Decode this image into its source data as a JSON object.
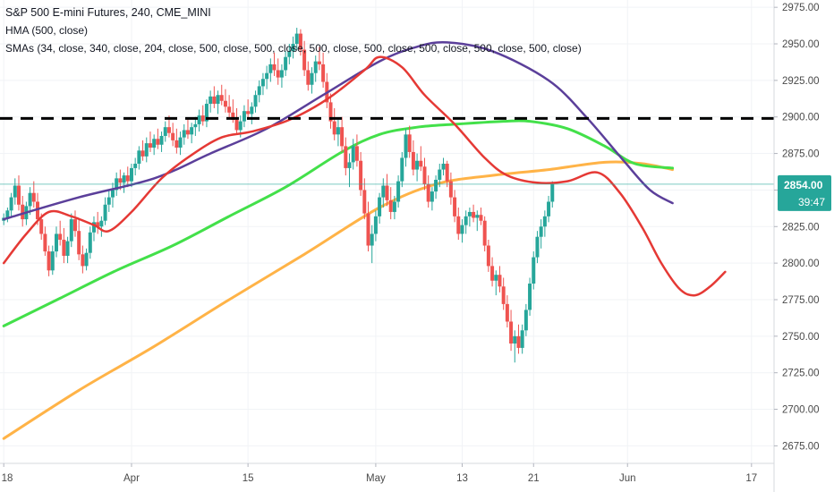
{
  "legend": {
    "title": "S&P 500 E-mini Futures, 240, CME_MINI",
    "hma": "HMA (500, close)",
    "smas": "SMAs (34, close, 340, close, 204, close, 500, close, 500, close, 500, close, 500, close, 500, close, 500, close, 500, close)"
  },
  "price_label": {
    "value": "2854.00",
    "countdown": "39:47",
    "color": "#26a69a"
  },
  "colors": {
    "up": "#26a69a",
    "down": "#ef5350",
    "hma": "#5b3f9a",
    "sma34": "#e53935",
    "sma204": "#43e04a",
    "sma340": "#ffb347",
    "dashed": "#000000",
    "price_line": "#26a69a"
  },
  "chart_data": {
    "type": "candlestick",
    "y_axis": {
      "ticks": [
        2675,
        2700,
        2725,
        2750,
        2775,
        2800,
        2825,
        2850,
        2875,
        2900,
        2925,
        2950,
        2975
      ],
      "tick_labels": [
        "2675.00",
        "2700.00",
        "2725.00",
        "2750.00",
        "2775.00",
        "2800.00",
        "2825.00",
        "2850.00",
        "2875.00",
        "2900.00",
        "2925.00",
        "2950.00",
        "2975.00"
      ],
      "ylim": [
        2663,
        2980
      ]
    },
    "x_axis": {
      "tick_labels": [
        "18",
        "Apr",
        "15",
        "May",
        "13",
        "21",
        "Jun",
        "17"
      ],
      "tick_positions": [
        0,
        34,
        65,
        99,
        122,
        141,
        166,
        199
      ],
      "xlim": [
        -1,
        205
      ]
    },
    "horizontal_line": 2899,
    "last_price": 2854,
    "ohlc": [
      [
        2829,
        2834,
        2826,
        2831
      ],
      [
        2831,
        2838,
        2828,
        2836
      ],
      [
        2836,
        2848,
        2832,
        2845
      ],
      [
        2845,
        2858,
        2840,
        2853
      ],
      [
        2853,
        2860,
        2836,
        2840
      ],
      [
        2840,
        2846,
        2825,
        2830
      ],
      [
        2830,
        2842,
        2826,
        2839
      ],
      [
        2839,
        2852,
        2833,
        2848
      ],
      [
        2848,
        2856,
        2838,
        2842
      ],
      [
        2842,
        2848,
        2826,
        2830
      ],
      [
        2830,
        2834,
        2816,
        2820
      ],
      [
        2820,
        2825,
        2805,
        2808
      ],
      [
        2808,
        2812,
        2791,
        2795
      ],
      [
        2795,
        2812,
        2792,
        2808
      ],
      [
        2808,
        2825,
        2804,
        2820
      ],
      [
        2820,
        2829,
        2812,
        2816
      ],
      [
        2816,
        2824,
        2800,
        2805
      ],
      [
        2805,
        2818,
        2800,
        2815
      ],
      [
        2815,
        2834,
        2811,
        2830
      ],
      [
        2830,
        2836,
        2818,
        2822
      ],
      [
        2822,
        2830,
        2802,
        2806
      ],
      [
        2806,
        2812,
        2793,
        2798
      ],
      [
        2798,
        2810,
        2795,
        2807
      ],
      [
        2807,
        2825,
        2803,
        2821
      ],
      [
        2821,
        2832,
        2815,
        2828
      ],
      [
        2828,
        2835,
        2820,
        2825
      ],
      [
        2825,
        2832,
        2818,
        2829
      ],
      [
        2829,
        2845,
        2826,
        2840
      ],
      [
        2840,
        2850,
        2835,
        2845
      ],
      [
        2845,
        2855,
        2838,
        2850
      ],
      [
        2850,
        2862,
        2846,
        2858
      ],
      [
        2858,
        2864,
        2850,
        2855
      ],
      [
        2855,
        2862,
        2848,
        2860
      ],
      [
        2860,
        2866,
        2852,
        2856
      ],
      [
        2856,
        2868,
        2852,
        2865
      ],
      [
        2865,
        2872,
        2860,
        2868
      ],
      [
        2868,
        2880,
        2864,
        2877
      ],
      [
        2877,
        2884,
        2870,
        2873
      ],
      [
        2873,
        2886,
        2869,
        2882
      ],
      [
        2882,
        2890,
        2876,
        2879
      ],
      [
        2879,
        2888,
        2874,
        2885
      ],
      [
        2885,
        2892,
        2878,
        2881
      ],
      [
        2881,
        2890,
        2876,
        2887
      ],
      [
        2887,
        2897,
        2883,
        2893
      ],
      [
        2893,
        2901,
        2886,
        2889
      ],
      [
        2889,
        2896,
        2880,
        2884
      ],
      [
        2884,
        2892,
        2875,
        2879
      ],
      [
        2879,
        2890,
        2874,
        2886
      ],
      [
        2886,
        2895,
        2881,
        2891
      ],
      [
        2891,
        2899,
        2885,
        2888
      ],
      [
        2888,
        2896,
        2882,
        2893
      ],
      [
        2893,
        2900,
        2887,
        2895
      ],
      [
        2895,
        2905,
        2890,
        2901
      ],
      [
        2901,
        2908,
        2894,
        2897
      ],
      [
        2897,
        2912,
        2893,
        2909
      ],
      [
        2909,
        2918,
        2903,
        2914
      ],
      [
        2914,
        2921,
        2906,
        2909
      ],
      [
        2909,
        2918,
        2902,
        2915
      ],
      [
        2915,
        2922,
        2908,
        2911
      ],
      [
        2911,
        2919,
        2903,
        2907
      ],
      [
        2907,
        2915,
        2899,
        2903
      ],
      [
        2903,
        2912,
        2896,
        2898
      ],
      [
        2898,
        2906,
        2888,
        2891
      ],
      [
        2891,
        2901,
        2886,
        2897
      ],
      [
        2897,
        2908,
        2893,
        2904
      ],
      [
        2904,
        2912,
        2898,
        2902
      ],
      [
        2902,
        2910,
        2895,
        2907
      ],
      [
        2907,
        2918,
        2903,
        2915
      ],
      [
        2915,
        2925,
        2910,
        2921
      ],
      [
        2921,
        2930,
        2915,
        2926
      ],
      [
        2926,
        2935,
        2919,
        2930
      ],
      [
        2930,
        2940,
        2924,
        2936
      ],
      [
        2936,
        2944,
        2928,
        2932
      ],
      [
        2932,
        2940,
        2922,
        2927
      ],
      [
        2927,
        2936,
        2920,
        2932
      ],
      [
        2932,
        2945,
        2928,
        2941
      ],
      [
        2941,
        2950,
        2936,
        2945
      ],
      [
        2945,
        2955,
        2940,
        2950
      ],
      [
        2950,
        2961,
        2946,
        2957
      ],
      [
        2957,
        2960,
        2942,
        2946
      ],
      [
        2946,
        2952,
        2928,
        2932
      ],
      [
        2932,
        2938,
        2918,
        2922
      ],
      [
        2922,
        2934,
        2916,
        2930
      ],
      [
        2930,
        2942,
        2924,
        2938
      ],
      [
        2938,
        2948,
        2932,
        2936
      ],
      [
        2936,
        2944,
        2920,
        2924
      ],
      [
        2924,
        2930,
        2906,
        2910
      ],
      [
        2910,
        2916,
        2892,
        2897
      ],
      [
        2897,
        2906,
        2884,
        2888
      ],
      [
        2888,
        2898,
        2880,
        2893
      ],
      [
        2893,
        2900,
        2876,
        2880
      ],
      [
        2880,
        2886,
        2860,
        2865
      ],
      [
        2865,
        2875,
        2852,
        2869
      ],
      [
        2869,
        2885,
        2864,
        2880
      ],
      [
        2880,
        2888,
        2866,
        2870
      ],
      [
        2870,
        2876,
        2846,
        2850
      ],
      [
        2850,
        2858,
        2830,
        2834
      ],
      [
        2834,
        2842,
        2808,
        2812
      ],
      [
        2812,
        2826,
        2800,
        2820
      ],
      [
        2820,
        2836,
        2815,
        2832
      ],
      [
        2832,
        2848,
        2827,
        2845
      ],
      [
        2845,
        2858,
        2838,
        2853
      ],
      [
        2853,
        2861,
        2839,
        2843
      ],
      [
        2843,
        2852,
        2830,
        2835
      ],
      [
        2835,
        2846,
        2830,
        2842
      ],
      [
        2842,
        2860,
        2838,
        2856
      ],
      [
        2856,
        2876,
        2852,
        2872
      ],
      [
        2872,
        2892,
        2866,
        2888
      ],
      [
        2888,
        2894,
        2872,
        2876
      ],
      [
        2876,
        2884,
        2860,
        2864
      ],
      [
        2864,
        2875,
        2856,
        2870
      ],
      [
        2870,
        2880,
        2863,
        2866
      ],
      [
        2866,
        2872,
        2850,
        2854
      ],
      [
        2854,
        2860,
        2838,
        2842
      ],
      [
        2842,
        2852,
        2836,
        2849
      ],
      [
        2849,
        2860,
        2844,
        2857
      ],
      [
        2857,
        2868,
        2852,
        2864
      ],
      [
        2864,
        2872,
        2860,
        2868
      ],
      [
        2868,
        2870,
        2852,
        2856
      ],
      [
        2856,
        2862,
        2840,
        2845
      ],
      [
        2845,
        2850,
        2828,
        2832
      ],
      [
        2832,
        2838,
        2816,
        2820
      ],
      [
        2820,
        2830,
        2814,
        2826
      ],
      [
        2826,
        2836,
        2820,
        2832
      ],
      [
        2832,
        2838,
        2825,
        2835
      ],
      [
        2835,
        2840,
        2828,
        2831
      ],
      [
        2831,
        2836,
        2822,
        2833
      ],
      [
        2833,
        2838,
        2826,
        2829
      ],
      [
        2829,
        2832,
        2808,
        2812
      ],
      [
        2812,
        2816,
        2794,
        2798
      ],
      [
        2798,
        2804,
        2784,
        2788
      ],
      [
        2788,
        2795,
        2778,
        2792
      ],
      [
        2792,
        2798,
        2780,
        2784
      ],
      [
        2784,
        2790,
        2768,
        2772
      ],
      [
        2772,
        2778,
        2756,
        2760
      ],
      [
        2760,
        2768,
        2740,
        2745
      ],
      [
        2745,
        2754,
        2732,
        2750
      ],
      [
        2750,
        2758,
        2738,
        2742
      ],
      [
        2742,
        2758,
        2738,
        2754
      ],
      [
        2754,
        2772,
        2750,
        2768
      ],
      [
        2768,
        2790,
        2764,
        2786
      ],
      [
        2786,
        2808,
        2782,
        2804
      ],
      [
        2804,
        2822,
        2800,
        2818
      ],
      [
        2818,
        2830,
        2810,
        2825
      ],
      [
        2825,
        2836,
        2818,
        2832
      ],
      [
        2832,
        2846,
        2828,
        2842
      ],
      [
        2842,
        2856,
        2838,
        2854
      ]
    ],
    "series": [
      {
        "name": "HMA (500, close)",
        "color": "#5b3f9a",
        "points": [
          [
            0,
            2830
          ],
          [
            20,
            2845
          ],
          [
            40,
            2858
          ],
          [
            55,
            2875
          ],
          [
            70,
            2892
          ],
          [
            85,
            2915
          ],
          [
            100,
            2938
          ],
          [
            110,
            2948
          ],
          [
            118,
            2951
          ],
          [
            130,
            2945
          ],
          [
            145,
            2925
          ],
          [
            155,
            2900
          ],
          [
            165,
            2870
          ],
          [
            172,
            2850
          ],
          [
            178,
            2841
          ]
        ]
      },
      {
        "name": "SMA 34",
        "color": "#e53935",
        "points": [
          [
            0,
            2800
          ],
          [
            6,
            2820
          ],
          [
            12,
            2835
          ],
          [
            18,
            2832
          ],
          [
            24,
            2826
          ],
          [
            28,
            2822
          ],
          [
            34,
            2835
          ],
          [
            42,
            2858
          ],
          [
            50,
            2874
          ],
          [
            58,
            2886
          ],
          [
            66,
            2890
          ],
          [
            76,
            2898
          ],
          [
            86,
            2912
          ],
          [
            96,
            2932
          ],
          [
            100,
            2941
          ],
          [
            106,
            2934
          ],
          [
            112,
            2915
          ],
          [
            120,
            2895
          ],
          [
            128,
            2872
          ],
          [
            134,
            2860
          ],
          [
            142,
            2855
          ],
          [
            150,
            2856
          ],
          [
            158,
            2862
          ],
          [
            164,
            2848
          ],
          [
            170,
            2824
          ],
          [
            175,
            2800
          ],
          [
            180,
            2782
          ],
          [
            184,
            2778
          ],
          [
            188,
            2784
          ],
          [
            192,
            2794
          ]
        ]
      },
      {
        "name": "SMA 204",
        "color": "#43e04a",
        "points": [
          [
            0,
            2757
          ],
          [
            15,
            2776
          ],
          [
            30,
            2795
          ],
          [
            45,
            2812
          ],
          [
            60,
            2832
          ],
          [
            75,
            2852
          ],
          [
            90,
            2876
          ],
          [
            100,
            2888
          ],
          [
            110,
            2893
          ],
          [
            120,
            2895
          ],
          [
            133,
            2897
          ],
          [
            140,
            2897
          ],
          [
            150,
            2892
          ],
          [
            160,
            2880
          ],
          [
            168,
            2868
          ],
          [
            178,
            2865
          ]
        ]
      },
      {
        "name": "SMA 340",
        "color": "#ffb347",
        "points": [
          [
            0,
            2680
          ],
          [
            20,
            2713
          ],
          [
            40,
            2743
          ],
          [
            60,
            2775
          ],
          [
            80,
            2806
          ],
          [
            100,
            2838
          ],
          [
            115,
            2854
          ],
          [
            130,
            2860
          ],
          [
            145,
            2864
          ],
          [
            160,
            2869
          ],
          [
            170,
            2868
          ],
          [
            178,
            2864
          ]
        ]
      }
    ]
  }
}
